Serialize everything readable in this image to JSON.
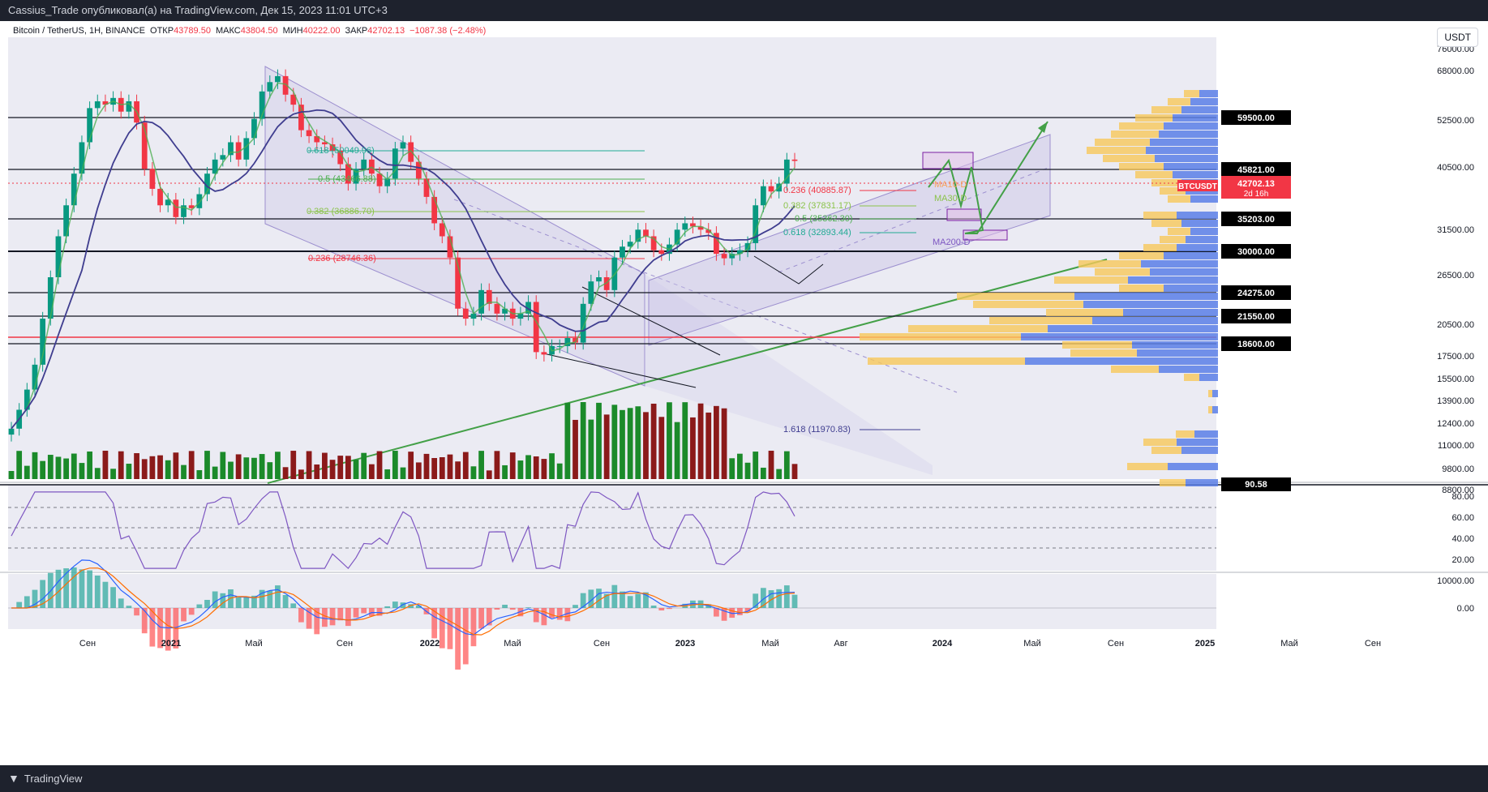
{
  "header": {
    "publisher": "Cassius_Trade опубликовал(а) на TradingView.com, Дек 15, 2023 11:01 UTC+3"
  },
  "legend": {
    "symbol": "Bitcoin / TetherUS, 1H, BINANCE",
    "open_label": "ОТКР",
    "open": "43789.50",
    "high_label": "МАКС",
    "high": "43804.50",
    "low_label": "МИН",
    "low": "40222.00",
    "close_label": "ЗАКР",
    "close": "42702.13",
    "change": "−1087.38 (−2.48%)"
  },
  "currency_button": "USDT",
  "footer": {
    "brand": "TradingView"
  },
  "colors": {
    "up": "#089981",
    "down": "#f23645",
    "ma_green": "#4caf50",
    "ma_navy": "#3f3d8f",
    "channel": "#9c8fcf",
    "fib_green": "#22ab94",
    "fib_red": "#f23645",
    "trend": "#43a047"
  },
  "chart_data": {
    "type": "line",
    "title": "",
    "xlabel": "",
    "ylabel": "",
    "x_ticks": [
      "Сен",
      "2021",
      "Май",
      "Сен",
      "2022",
      "Май",
      "Сен",
      "2023",
      "Май",
      "Авг",
      "2024",
      "Май",
      "Сен",
      "2025",
      "Май",
      "Сен"
    ],
    "y_scale": "log",
    "y_ticks": [
      "76000.00",
      "68000.00",
      "52500.00",
      "40500.00",
      "31500.00",
      "26500.00",
      "20500.00",
      "17500.00",
      "15500.00",
      "13900.00",
      "12400.00",
      "11000.00",
      "9800.00",
      "8800.00"
    ],
    "price_levels": [
      "59500.00",
      "45821.00",
      "35203.00",
      "30000.00",
      "24275.00",
      "21550.00",
      "18600.00"
    ],
    "last_price_label": {
      "symbol": "BTCUSDT",
      "price": "42702.13",
      "countdown": "2d 16h"
    },
    "fib_labels": [
      {
        "text": "0.618 (50049.96)",
        "color": "#22ab94"
      },
      {
        "text": "0.5 (43466.88)",
        "color": "#4caf50"
      },
      {
        "text": "0.382 (36886.70)",
        "color": "#8bc34a"
      },
      {
        "text": "0.236 (28746.36)",
        "color": "#f23645"
      },
      {
        "text": "0.236 (40885.87)",
        "color": "#f23645"
      },
      {
        "text": "0.382 (37831.17)",
        "color": "#8bc34a"
      },
      {
        "text": "0.5 (35362.30)",
        "color": "#4caf50"
      },
      {
        "text": "0.618 (32893.44)",
        "color": "#22ab94"
      },
      {
        "text": "1.618 (11970.83)",
        "color": "#3f3d8f"
      }
    ],
    "ma_labels": [
      "MA10-D",
      "MA30-D",
      "MA200-D"
    ],
    "series": [
      {
        "values": [
          10800,
          11900,
          13200,
          15000,
          19000,
          23500,
          29000,
          34000,
          40000,
          47000,
          56000,
          58000,
          57000,
          59000,
          55000,
          58000,
          52000,
          41000,
          37000,
          34000,
          35000,
          32000,
          34000,
          33500,
          36000,
          40000,
          43000,
          44000,
          47000,
          43000,
          48000,
          53000,
          61000,
          64000,
          66000,
          60000,
          57000,
          50000,
          48500,
          47000,
          46500,
          45000,
          42000,
          38000,
          41000,
          43000,
          40000,
          37500,
          39000,
          45500,
          47000,
          42500,
          39000,
          35500,
          31000,
          29000,
          26000,
          20000,
          19000,
          19500,
          22000,
          20500,
          19500,
          20000,
          19000,
          19500,
          20700,
          16000,
          15800,
          16500,
          16500,
          17200,
          16800,
          20500,
          23000,
          23500,
          22000,
          26000,
          27500,
          28200,
          30000,
          29000,
          27000,
          26500,
          27800,
          30000,
          31000,
          30500,
          30000,
          29500,
          26500,
          25900,
          26500,
          27000,
          28000,
          34000,
          37500,
          36500,
          38000,
          43000,
          42702
        ]
      }
    ],
    "rsi": {
      "levels": [
        30,
        50,
        70
      ],
      "last": "90.58",
      "ticks": [
        "80.00",
        "60.00",
        "40.00",
        "20.00"
      ]
    },
    "macd": {
      "ticks": [
        "10000.00",
        "0.00"
      ]
    }
  }
}
